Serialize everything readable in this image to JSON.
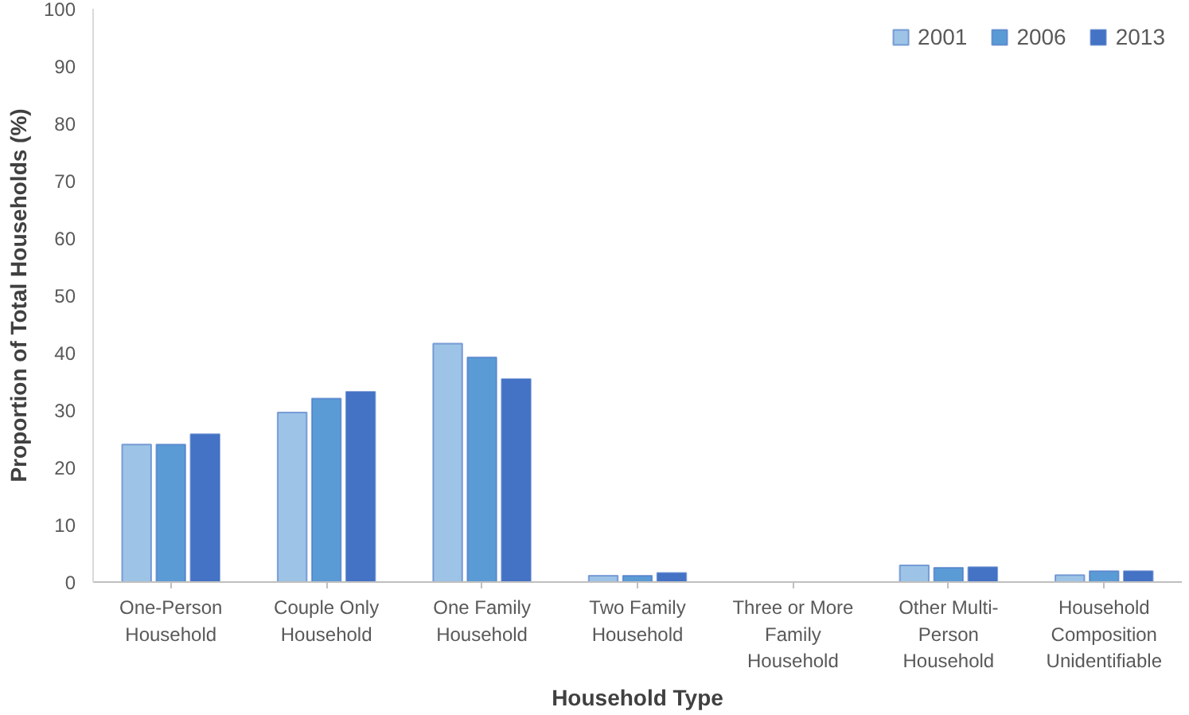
{
  "chart_data": {
    "type": "bar",
    "xlabel": "Household Type",
    "ylabel": "Proportion of Total Households (%)",
    "categories": [
      "One-Person\nHousehold",
      "Couple Only\nHousehold",
      "One Family\nHousehold",
      "Two Family\nHousehold",
      "Three or More\nFamily\nHousehold",
      "Other Multi-\nPerson\nHousehold",
      "Household\nComposition\nUnidentifiable"
    ],
    "series": [
      {
        "name": "2001",
        "color": "#9dc3e6",
        "values": [
          24,
          29.6,
          41.6,
          1.1,
          null,
          2.9,
          1.2
        ]
      },
      {
        "name": "2006",
        "color": "#5b9bd5",
        "values": [
          24,
          32,
          39.2,
          1.1,
          null,
          2.5,
          1.9
        ]
      },
      {
        "name": "2013",
        "color": "#4472c4",
        "values": [
          25.8,
          33.2,
          35.4,
          1.6,
          null,
          2.6,
          1.9
        ]
      }
    ],
    "ylim": [
      0,
      100
    ],
    "yticks": [
      0,
      10,
      20,
      30,
      40,
      50,
      60,
      70,
      80,
      90,
      100
    ],
    "grid": false,
    "legend": "top right"
  }
}
